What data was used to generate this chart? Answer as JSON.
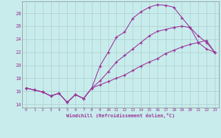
{
  "xlabel": "Windchill (Refroidissement éolien,°C)",
  "bg_color": "#c8ecec",
  "line_color": "#993399",
  "grid_color": "#aacccc",
  "xlim": [
    -0.5,
    23.5
  ],
  "ylim": [
    13.5,
    29.8
  ],
  "xticks": [
    0,
    1,
    2,
    3,
    4,
    5,
    6,
    7,
    8,
    9,
    10,
    11,
    12,
    13,
    14,
    15,
    16,
    17,
    18,
    19,
    20,
    21,
    22,
    23
  ],
  "yticks": [
    14,
    16,
    18,
    20,
    22,
    24,
    26,
    28
  ],
  "curve1_x": [
    0,
    1,
    2,
    3,
    4,
    5,
    6,
    7,
    8,
    9,
    10,
    11,
    12,
    13,
    14,
    15,
    16,
    17,
    18,
    19,
    20,
    21,
    22,
    23
  ],
  "curve1_y": [
    16.5,
    16.2,
    15.9,
    15.3,
    15.7,
    14.3,
    15.5,
    14.9,
    16.5,
    19.9,
    22.0,
    24.3,
    25.1,
    27.2,
    28.2,
    28.9,
    29.3,
    29.2,
    28.9,
    27.3,
    25.8,
    23.5,
    22.5,
    22.0
  ],
  "curve2_x": [
    0,
    1,
    2,
    3,
    4,
    5,
    6,
    7,
    8,
    9,
    10,
    11,
    12,
    13,
    14,
    15,
    16,
    17,
    18,
    19,
    20,
    21,
    22,
    23
  ],
  "curve2_y": [
    16.5,
    16.2,
    15.9,
    15.3,
    15.7,
    14.3,
    15.5,
    14.9,
    16.5,
    17.6,
    19.0,
    20.5,
    21.5,
    22.5,
    23.5,
    24.5,
    25.2,
    25.5,
    25.8,
    26.0,
    25.8,
    24.5,
    23.5,
    22.0
  ],
  "curve3_x": [
    0,
    1,
    2,
    3,
    4,
    5,
    6,
    7,
    8,
    9,
    10,
    11,
    12,
    13,
    14,
    15,
    16,
    17,
    18,
    19,
    20,
    21,
    22,
    23
  ],
  "curve3_y": [
    16.5,
    16.2,
    15.9,
    15.3,
    15.7,
    14.3,
    15.5,
    14.9,
    16.5,
    17.0,
    17.5,
    18.0,
    18.5,
    19.2,
    19.9,
    20.5,
    21.0,
    21.8,
    22.3,
    22.8,
    23.2,
    23.5,
    23.8,
    22.0
  ]
}
